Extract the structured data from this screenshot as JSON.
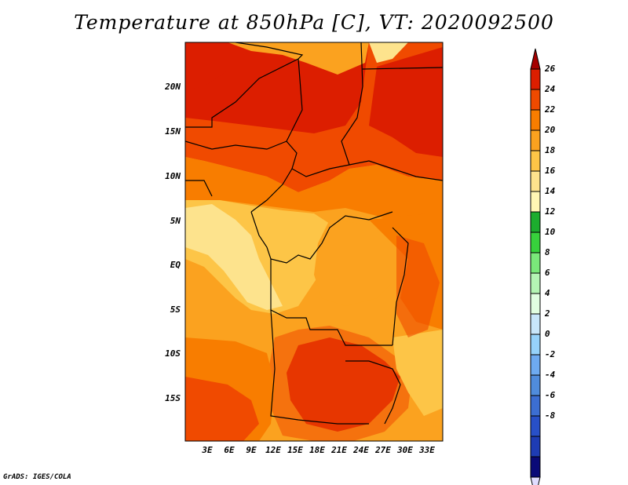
{
  "title": "Temperature at 850hPa [C], VT: 2020092500",
  "credit": "GrADS: IGES/COLA",
  "map": {
    "lat_labels": [
      "20N",
      "15N",
      "10N",
      "5N",
      "EQ",
      "5S",
      "10S",
      "15S"
    ],
    "lon_labels": [
      "3E",
      "6E",
      "9E",
      "12E",
      "15E",
      "18E",
      "21E",
      "24E",
      "27E",
      "30E",
      "33E"
    ]
  },
  "colorbar": {
    "labels": [
      "26",
      "24",
      "22",
      "20",
      "18",
      "16",
      "14",
      "12",
      "10",
      "8",
      "6",
      "4",
      "2",
      "0",
      "-2",
      "-4",
      "-6",
      "-8"
    ],
    "colors": [
      "#a50000",
      "#dc1e00",
      "#f04a00",
      "#f87d00",
      "#fba21f",
      "#fdc547",
      "#fde38d",
      "#fff6b4",
      "#1cad2e",
      "#37d23c",
      "#7ae87a",
      "#b4f4b4",
      "#e1fee1",
      "#c8e6fa",
      "#96d2fa",
      "#6eaaf0",
      "#508cdc",
      "#3c6ed2",
      "#2850c8",
      "#1e3cb4",
      "#0a0a78",
      "#e0dcff"
    ]
  }
}
